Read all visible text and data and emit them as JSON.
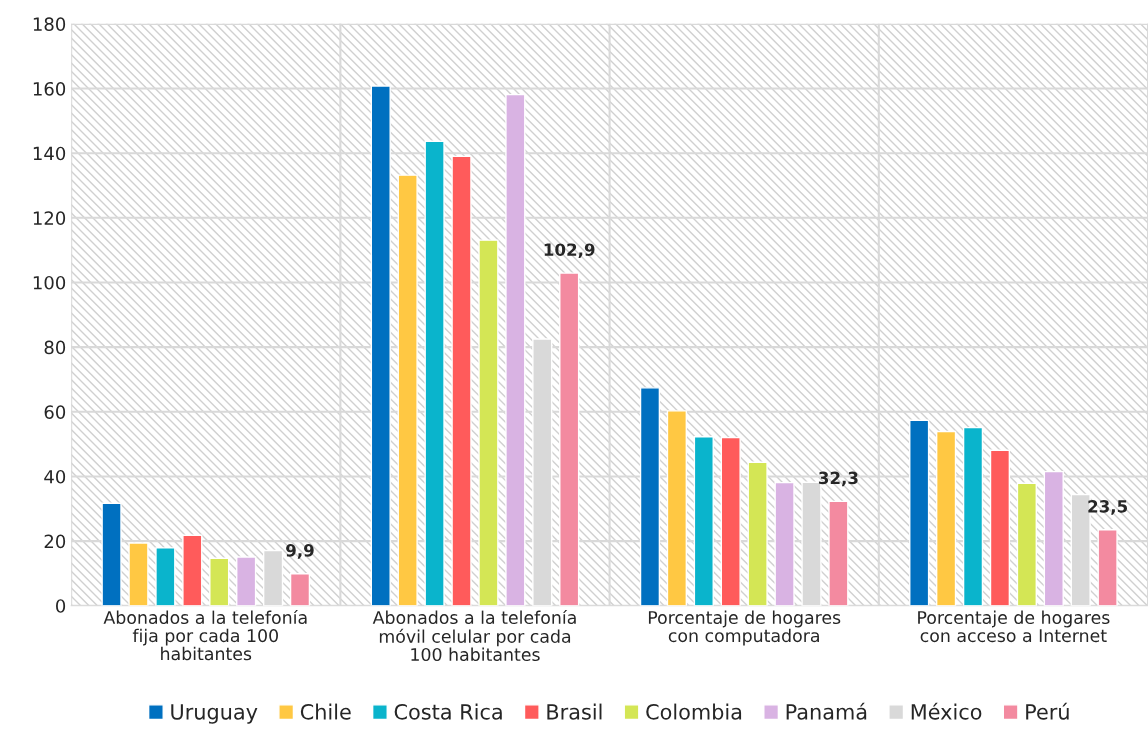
{
  "chart_data": {
    "type": "bar",
    "categories": [
      "Abonados a la telefonía fija por cada 100 habitantes",
      "Abonados a la telefonía móvil celular por cada 100 habitantes",
      "Porcentaje de hogares con computadora",
      "Porcentaje de hogares con acceso a Internet"
    ],
    "series": [
      {
        "name": "Uruguay",
        "color": "#0070c0",
        "values": [
          31.7,
          160.8,
          67.4,
          57.4
        ]
      },
      {
        "name": "Chile",
        "color": "#ffc843",
        "values": [
          19.4,
          133.2,
          60.3,
          53.9
        ]
      },
      {
        "name": "Costa Rica",
        "color": "#0ab4cc",
        "values": [
          17.9,
          143.7,
          52.3,
          55.1
        ]
      },
      {
        "name": "Brasil",
        "color": "#ff5b5b",
        "values": [
          21.8,
          139.0,
          52.0,
          48.1
        ]
      },
      {
        "name": "Colombia",
        "color": "#d4e655",
        "values": [
          14.7,
          113.1,
          44.4,
          37.9
        ]
      },
      {
        "name": "Panamá",
        "color": "#d9b3e3",
        "values": [
          15.1,
          158.1,
          38.1,
          41.5
        ]
      },
      {
        "name": "México",
        "color": "#d9d9d9",
        "values": [
          17.1,
          82.5,
          38.2,
          34.4
        ]
      },
      {
        "name": "Perú",
        "color": "#f38aa0",
        "values": [
          9.9,
          102.9,
          32.3,
          23.5
        ],
        "value_labels": [
          "9,9",
          "102,9",
          "32,3",
          "23,5"
        ]
      }
    ],
    "ylim": [
      0,
      180
    ],
    "yticks": [
      0,
      20,
      40,
      60,
      80,
      100,
      120,
      140,
      160,
      180
    ],
    "grid": true,
    "legend": "bottom"
  }
}
